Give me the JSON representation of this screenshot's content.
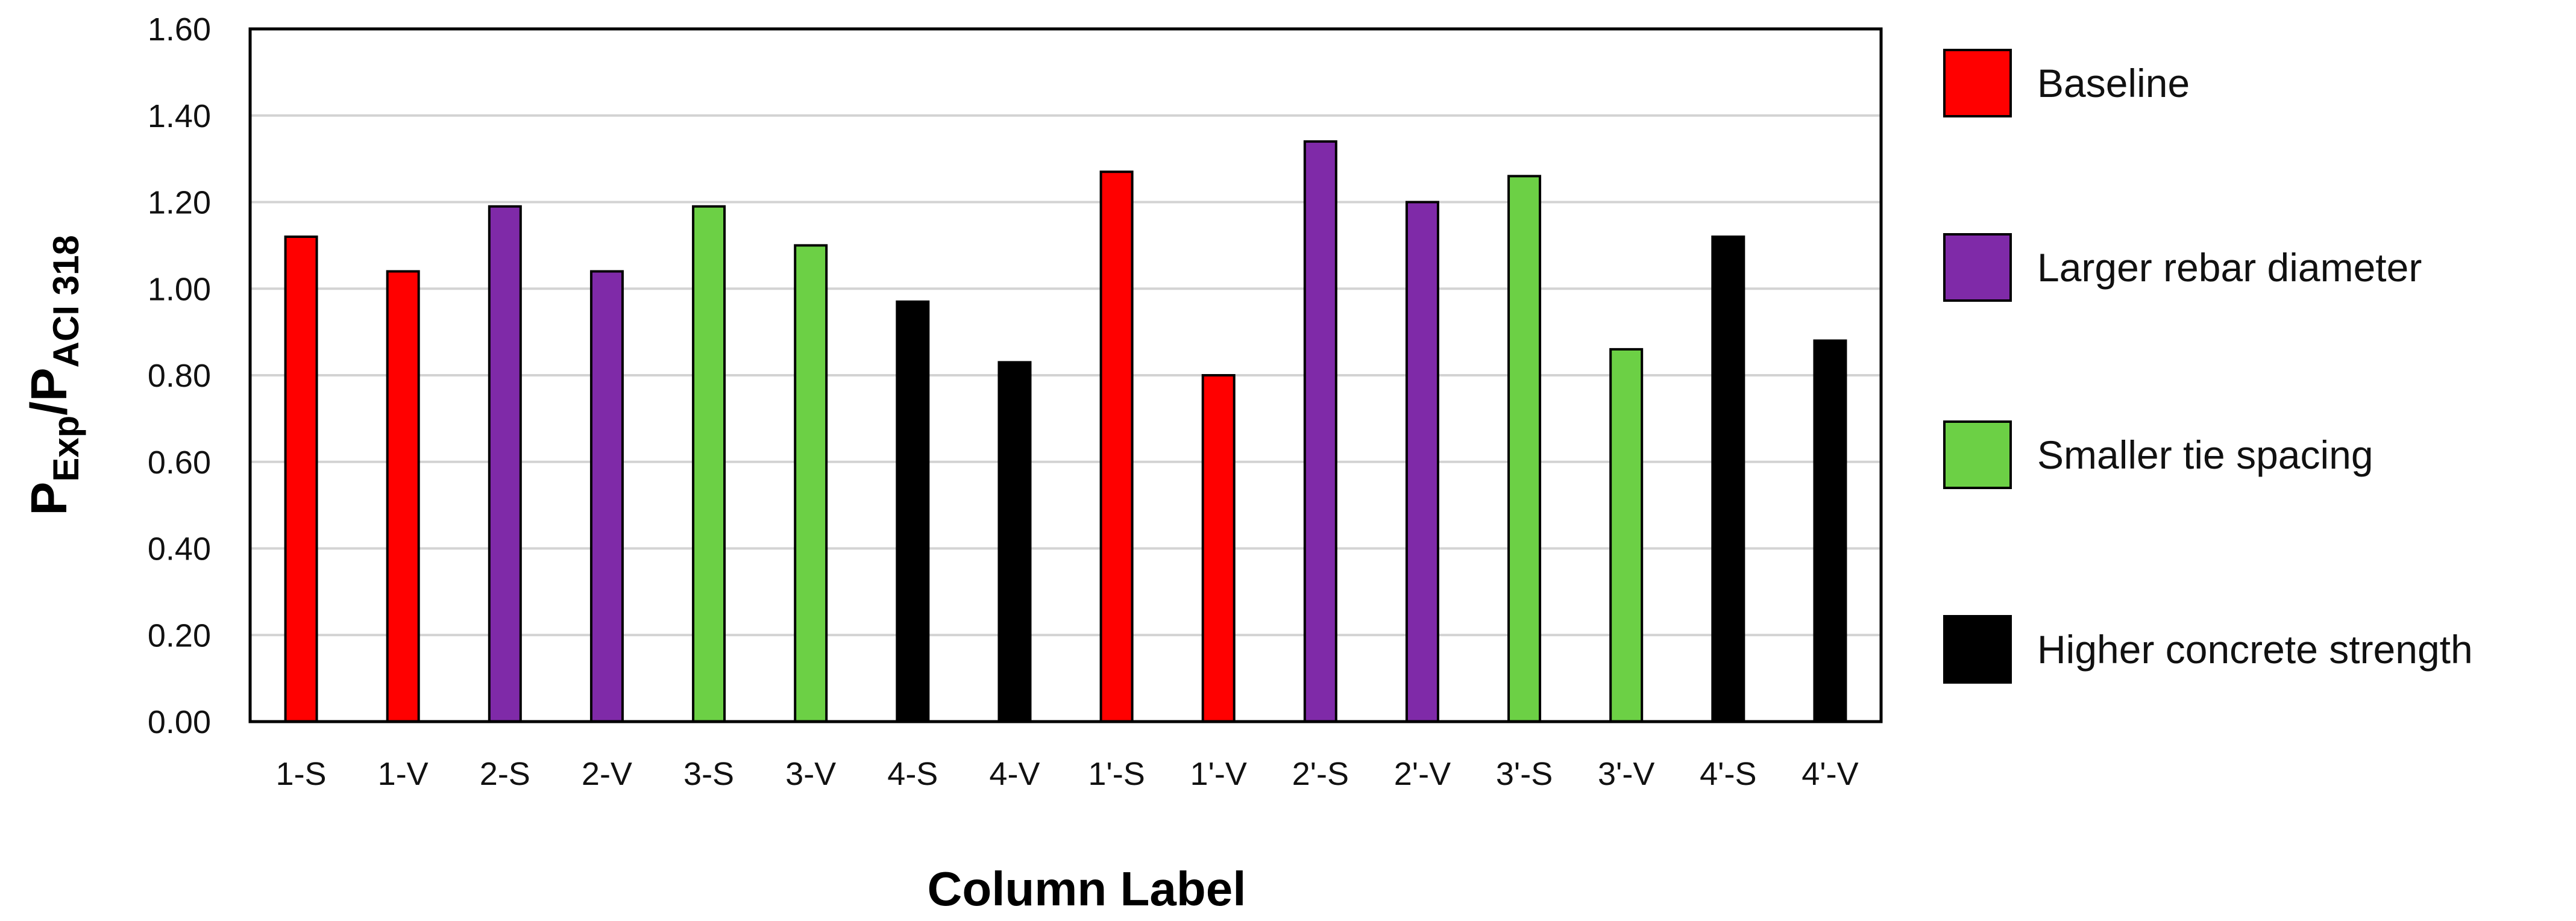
{
  "chart_data": {
    "type": "bar",
    "xlabel": "Column Label",
    "ylabel": {
      "main": "P",
      "sub1": "Exp",
      "sep": "/",
      "main2": "P",
      "sub2": "ACI 318"
    },
    "ylim": [
      0,
      1.6
    ],
    "yticks": [
      "0.00",
      "0.20",
      "0.40",
      "0.60",
      "0.80",
      "1.00",
      "1.20",
      "1.40",
      "1.60"
    ],
    "grid": true,
    "legend_position": "right",
    "categories": [
      "1-S",
      "1-V",
      "2-S",
      "2-V",
      "3-S",
      "3-V",
      "4-S",
      "4-V",
      "1'-S",
      "1'-V",
      "2'-S",
      "2'-V",
      "3'-S",
      "3'-V",
      "4'-S",
      "4'-V"
    ],
    "values": [
      1.12,
      1.04,
      1.19,
      1.04,
      1.19,
      1.1,
      0.97,
      0.83,
      1.27,
      0.8,
      1.34,
      1.2,
      1.26,
      0.86,
      1.12,
      0.88
    ],
    "groups": [
      0,
      0,
      1,
      1,
      2,
      2,
      3,
      3,
      0,
      0,
      1,
      1,
      2,
      2,
      3,
      3
    ],
    "legend": [
      {
        "name": "Baseline",
        "color": "#FF0000"
      },
      {
        "name": "Larger rebar diameter",
        "color": "#7F2AA8"
      },
      {
        "name": "Smaller tie  spacing",
        "color": "#6CD045"
      },
      {
        "name": "Higher concrete strength",
        "color": "#000000"
      }
    ]
  }
}
